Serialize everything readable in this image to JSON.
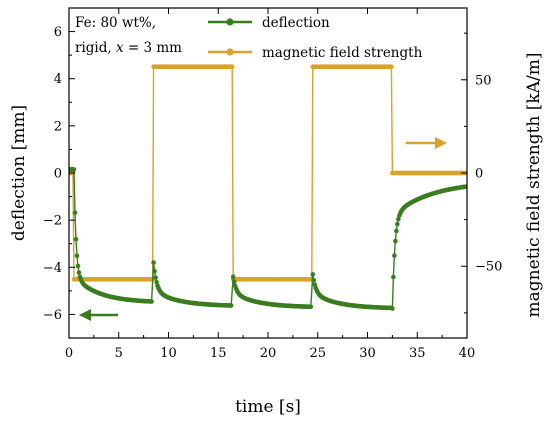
{
  "chart_data": {
    "type": "line",
    "xlabel": "time [s]",
    "ylabel_left": "deflection [mm]",
    "ylabel_right": "magnetic field strength [kA/m]",
    "annotation": {
      "line1": "Fe: 80 wt%,",
      "line2_a": "rigid, ",
      "line2_var": "x",
      "line2_b": " = 3 mm"
    },
    "xlim": [
      0,
      40
    ],
    "ylim_left": [
      -7,
      7
    ],
    "ylim_right": [
      -88.5,
      88.5
    ],
    "x_ticks": [
      0,
      5,
      10,
      15,
      20,
      25,
      30,
      35,
      40
    ],
    "y_left_ticks": [
      -6,
      -4,
      -2,
      0,
      2,
      4,
      6
    ],
    "y_right_ticks": [
      -50,
      0,
      50
    ],
    "grid": false,
    "legend_position": "top",
    "series": [
      {
        "name": "deflection",
        "color": "#3a7d1e",
        "marker": "circle",
        "axis": "left",
        "events": [
          {
            "t": 0.5,
            "type": "drop",
            "from": 0.15,
            "base": -4.4,
            "target": -5.5,
            "tau1": 0.2,
            "tau2": 2.5,
            "end": 8.4
          },
          {
            "t": 8.5,
            "type": "spike",
            "peak": -3.8,
            "base": -5.0,
            "target": -5.65,
            "tau1": 0.3,
            "tau2": 2.5,
            "end": 16.4
          },
          {
            "t": 16.5,
            "type": "spike",
            "peak": -4.4,
            "base": -5.1,
            "target": -5.7,
            "tau1": 0.3,
            "tau2": 2.5,
            "end": 24.4
          },
          {
            "t": 24.5,
            "type": "spike",
            "peak": -4.3,
            "base": -5.1,
            "target": -5.75,
            "tau1": 0.3,
            "tau2": 2.5,
            "end": 32.4
          },
          {
            "t": 32.5,
            "type": "rise",
            "from": -5.75,
            "base": -1.8,
            "target": -0.35,
            "tau1": 0.25,
            "tau2": 4.0,
            "end": 40
          }
        ]
      },
      {
        "name": "magnetic field strength",
        "color": "#d9a22a",
        "marker": "circle",
        "axis": "right",
        "levels": [
          {
            "from": 0,
            "to": 0.5,
            "value": 0
          },
          {
            "from": 0.5,
            "to": 8.5,
            "value": -57
          },
          {
            "from": 8.5,
            "to": 16.5,
            "value": 57
          },
          {
            "from": 16.5,
            "to": 24.5,
            "value": -57
          },
          {
            "from": 24.5,
            "to": 32.5,
            "value": 57
          },
          {
            "from": 32.5,
            "to": 40,
            "value": 0
          }
        ]
      }
    ]
  }
}
